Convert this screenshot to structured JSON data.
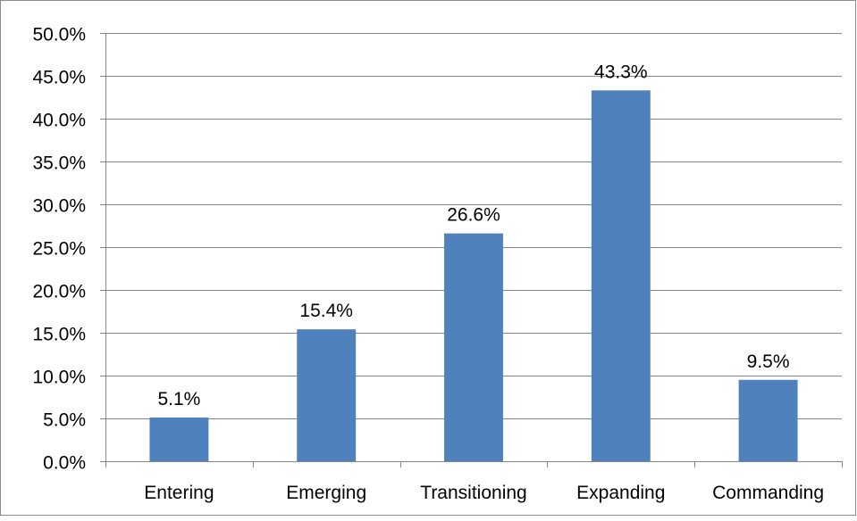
{
  "chart_data": {
    "type": "bar",
    "categories": [
      "Entering",
      "Emerging",
      "Transitioning",
      "Expanding",
      "Commanding"
    ],
    "values": [
      5.1,
      15.4,
      26.6,
      43.3,
      9.5
    ],
    "data_labels": [
      "5.1%",
      "15.4%",
      "26.6%",
      "43.3%",
      "9.5%"
    ],
    "title": "",
    "xlabel": "",
    "ylabel": "",
    "ylim": [
      0,
      50
    ],
    "yticks": [
      0,
      5,
      10,
      15,
      20,
      25,
      30,
      35,
      40,
      45,
      50
    ],
    "ytick_labels": [
      "0.0%",
      "5.0%",
      "10.0%",
      "15.0%",
      "20.0%",
      "25.0%",
      "30.0%",
      "35.0%",
      "40.0%",
      "45.0%",
      "50.0%"
    ],
    "grid": true,
    "legend": "none",
    "bar_color": "#4f81bd",
    "grid_color": "#868686"
  }
}
